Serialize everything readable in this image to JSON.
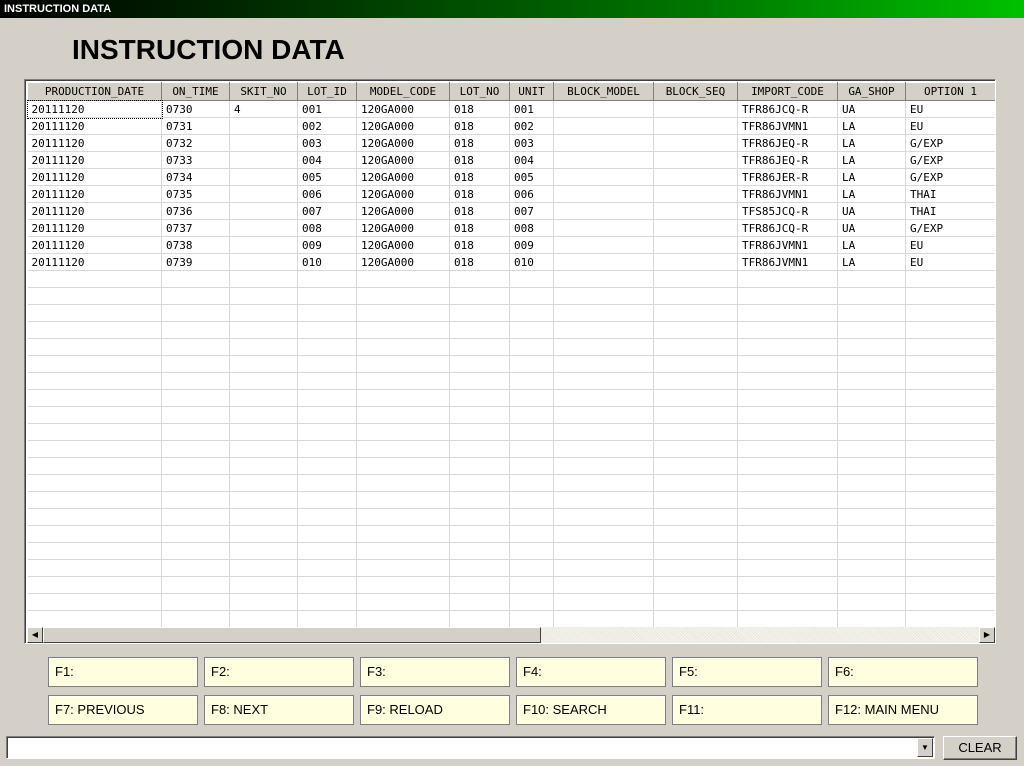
{
  "window": {
    "title": "INSTRUCTION DATA"
  },
  "page": {
    "title": "INSTRUCTION DATA"
  },
  "grid": {
    "columns": [
      "PRODUCTION_DATE",
      "ON_TIME",
      "SKIT_NO",
      "LOT_ID",
      "MODEL_CODE",
      "LOT_NO",
      "UNIT",
      "BLOCK_MODEL",
      "BLOCK_SEQ",
      "IMPORT_CODE",
      "GA_SHOP",
      "OPTION 1"
    ],
    "rows": [
      [
        "20111120",
        "0730",
        "4",
        "001",
        "120GA000",
        "018",
        "001",
        "",
        "",
        "TFR86JCQ-R",
        "UA",
        "EU"
      ],
      [
        "20111120",
        "0731",
        "",
        "002",
        "120GA000",
        "018",
        "002",
        "",
        "",
        "TFR86JVMN1",
        "LA",
        "EU"
      ],
      [
        "20111120",
        "0732",
        "",
        "003",
        "120GA000",
        "018",
        "003",
        "",
        "",
        "TFR86JEQ-R",
        "LA",
        "G/EXP"
      ],
      [
        "20111120",
        "0733",
        "",
        "004",
        "120GA000",
        "018",
        "004",
        "",
        "",
        "TFR86JEQ-R",
        "LA",
        "G/EXP"
      ],
      [
        "20111120",
        "0734",
        "",
        "005",
        "120GA000",
        "018",
        "005",
        "",
        "",
        "TFR86JER-R",
        "LA",
        "G/EXP"
      ],
      [
        "20111120",
        "0735",
        "",
        "006",
        "120GA000",
        "018",
        "006",
        "",
        "",
        "TFR86JVMN1",
        "LA",
        "THAI"
      ],
      [
        "20111120",
        "0736",
        "",
        "007",
        "120GA000",
        "018",
        "007",
        "",
        "",
        "TFS85JCQ-R",
        "UA",
        "THAI"
      ],
      [
        "20111120",
        "0737",
        "",
        "008",
        "120GA000",
        "018",
        "008",
        "",
        "",
        "TFR86JCQ-R",
        "UA",
        "G/EXP"
      ],
      [
        "20111120",
        "0738",
        "",
        "009",
        "120GA000",
        "018",
        "009",
        "",
        "",
        "TFR86JVMN1",
        "LA",
        "EU"
      ],
      [
        "20111120",
        "0739",
        "",
        "010",
        "120GA000",
        "018",
        "010",
        "",
        "",
        "TFR86JVMN1",
        "LA",
        "EU"
      ]
    ],
    "empty_row_count": 21
  },
  "function_keys": [
    {
      "label": "F1:"
    },
    {
      "label": "F2:"
    },
    {
      "label": "F3:"
    },
    {
      "label": "F4:"
    },
    {
      "label": "F5:"
    },
    {
      "label": "F6:"
    },
    {
      "label": "F7: PREVIOUS"
    },
    {
      "label": "F8: NEXT"
    },
    {
      "label": "F9: RELOAD"
    },
    {
      "label": "F10: SEARCH"
    },
    {
      "label": "F11:"
    },
    {
      "label": "F12: MAIN MENU"
    }
  ],
  "bottom_bar": {
    "combo_value": "",
    "clear_label": "CLEAR"
  },
  "icons": {
    "scroll_left": "◀",
    "scroll_right": "▶",
    "dropdown": "▼"
  }
}
